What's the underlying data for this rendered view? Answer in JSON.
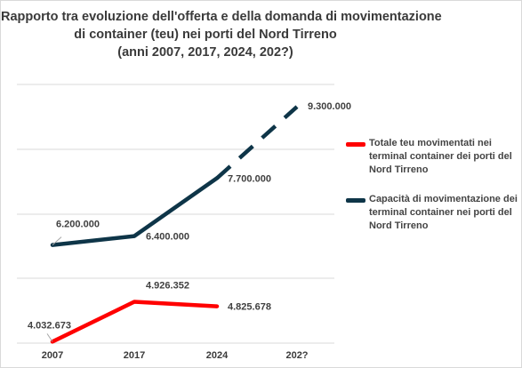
{
  "chart_data": {
    "type": "line",
    "title_lines": [
      "Rapporto tra evoluzione dell'offerta e della domanda di movimentazione",
      "di container (teu) nei porti del Nord Tirreno",
      "(anni 2007, 2017, 2024, 202?)"
    ],
    "categories": [
      "2007",
      "2017",
      "2024",
      "202?"
    ],
    "ylim": [
      4000000,
      9800000
    ],
    "grid": true,
    "legend_position": "right",
    "series": [
      {
        "name": "Totale teu movimentati nei terminal container dei porti del Nord Tirreno",
        "color": "#ff0000",
        "values": [
          4032673,
          4926352,
          4825678,
          null
        ],
        "labels": [
          "4.032.673",
          "4.926.352",
          "4.825.678",
          ""
        ]
      },
      {
        "name": "Capacità di movimentazione dei terminal container nei porti del Nord Tirreno",
        "color": "#0e3548",
        "values": [
          6200000,
          6400000,
          7700000,
          9300000
        ],
        "labels": [
          "6.200.000",
          "6.400.000",
          "7.700.000",
          "9.300.000"
        ],
        "projected_last_segment": true
      }
    ]
  }
}
